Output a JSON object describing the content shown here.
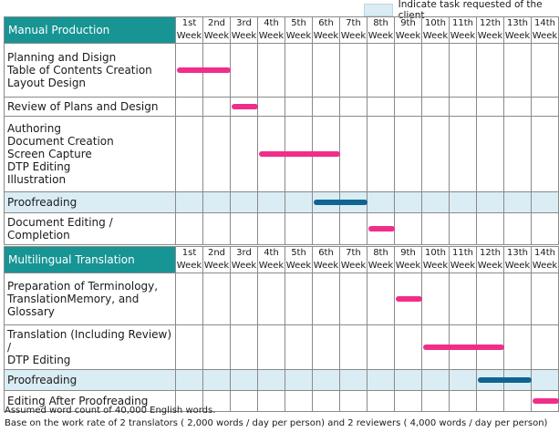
{
  "legend": {
    "label": "Indicate task requested of the client",
    "color": "#daedf4"
  },
  "colors": {
    "header": "#179494",
    "vendor_bar": "#f02e8a",
    "client_bar": "#0f6591"
  },
  "weeks": [
    {
      "num": "1st",
      "word": "Week"
    },
    {
      "num": "2nd",
      "word": "Week"
    },
    {
      "num": "3rd",
      "word": "Week"
    },
    {
      "num": "4th",
      "word": "Week"
    },
    {
      "num": "5th",
      "word": "Week"
    },
    {
      "num": "6th",
      "word": "Week"
    },
    {
      "num": "7th",
      "word": "Week"
    },
    {
      "num": "8th",
      "word": "Week"
    },
    {
      "num": "9th",
      "word": "Week"
    },
    {
      "num": "10th",
      "word": "Week"
    },
    {
      "num": "11th",
      "word": "Week"
    },
    {
      "num": "12th",
      "word": "Week"
    },
    {
      "num": "13th",
      "word": "Week"
    },
    {
      "num": "14th",
      "word": "Week"
    }
  ],
  "sections": [
    {
      "title": "Manual Production",
      "tasks": [
        {
          "lines": [
            "Planning and Disign",
            "Table of Contents Creation",
            "Layout Design"
          ],
          "start_week": 1,
          "end_week": 2,
          "client": false
        },
        {
          "lines": [
            "Review of Plans and Design"
          ],
          "start_week": 3,
          "end_week": 3,
          "client": false
        },
        {
          "lines": [
            "Authoring",
            "Document Creation",
            "Screen Capture",
            "DTP Editing",
            "Illustration"
          ],
          "start_week": 4,
          "end_week": 6,
          "client": false
        },
        {
          "lines": [
            "Proofreading"
          ],
          "start_week": 6,
          "end_week": 7,
          "client": true
        },
        {
          "lines": [
            "Document Editing / Completion"
          ],
          "start_week": 8,
          "end_week": 8,
          "client": false
        }
      ]
    },
    {
      "title": "Multilingual  Translation",
      "tasks": [
        {
          "lines": [
            "Preparation of Terminology,",
            "TranslationMemory, and",
            "Glossary"
          ],
          "start_week": 9,
          "end_week": 9,
          "client": false
        },
        {
          "lines": [
            "Translation (Including Review) /",
            "DTP Editing"
          ],
          "start_week": 10,
          "end_week": 12,
          "client": false
        },
        {
          "lines": [
            "Proofreading"
          ],
          "start_week": 12,
          "end_week": 13,
          "client": true
        },
        {
          "lines": [
            "Editing After Proofreading"
          ],
          "start_week": 14,
          "end_week": 14,
          "client": false
        }
      ]
    }
  ],
  "notes": [
    "Assumed word count of 40,000 English words.",
    "Base on the work rate of 2 translators ( 2,000 words / day per person)  and 2 reviewers ( 4,000 words / day per person)"
  ]
}
